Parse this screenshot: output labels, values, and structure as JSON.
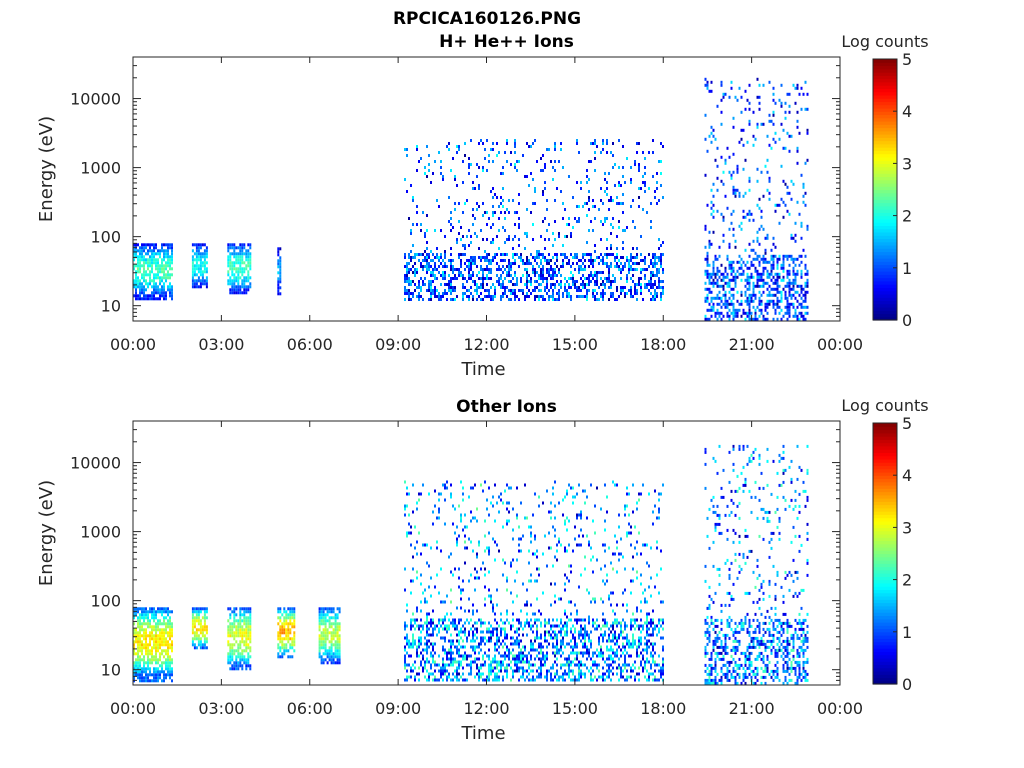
{
  "figure": {
    "title": "RPCICA160126.PNG"
  },
  "chart_data": [
    {
      "type": "heatmap",
      "title": "H+ He++ Ions",
      "xlabel": "Time",
      "ylabel": "Energy (eV)",
      "x_ticks": [
        "00:00",
        "03:00",
        "06:00",
        "09:00",
        "12:00",
        "15:00",
        "18:00",
        "21:00",
        "00:00"
      ],
      "y_ticks": [
        "10",
        "100",
        "1000",
        "10000"
      ],
      "y_scale": "log",
      "ylim": [
        6,
        40000
      ],
      "xlim_hours": [
        0,
        24
      ],
      "colorbar": {
        "label": "Log counts",
        "ticks": [
          "0",
          "1",
          "2",
          "3",
          "4",
          "5"
        ],
        "range": [
          0,
          5
        ],
        "colormap": "jet"
      },
      "data_intervals": [
        {
          "start_h": 0.0,
          "end_h": 1.3,
          "e_min": 12,
          "e_max": 80,
          "log_counts_peak": 2.2
        },
        {
          "start_h": 2.0,
          "end_h": 2.5,
          "e_min": 18,
          "e_max": 80,
          "log_counts_peak": 2.0
        },
        {
          "start_h": 3.2,
          "end_h": 4.0,
          "e_min": 15,
          "e_max": 80,
          "log_counts_peak": 2.2
        },
        {
          "start_h": 4.9,
          "end_h": 5.0,
          "e_min": 15,
          "e_max": 70,
          "log_counts_peak": 1.5
        },
        {
          "start_h": 9.2,
          "end_h": 18.0,
          "e_min": 12,
          "e_max": 2600,
          "log_counts_peak": 2.0
        },
        {
          "start_h": 19.4,
          "end_h": 22.9,
          "e_min": 6,
          "e_max": 20000,
          "log_counts_peak": 2.0
        }
      ]
    },
    {
      "type": "heatmap",
      "title": "Other Ions",
      "xlabel": "Time",
      "ylabel": "Energy (eV)",
      "x_ticks": [
        "00:00",
        "03:00",
        "06:00",
        "09:00",
        "12:00",
        "15:00",
        "18:00",
        "21:00",
        "00:00"
      ],
      "y_ticks": [
        "10",
        "100",
        "1000",
        "10000"
      ],
      "y_scale": "log",
      "ylim": [
        6,
        40000
      ],
      "xlim_hours": [
        0,
        24
      ],
      "colorbar": {
        "label": "Log counts",
        "ticks": [
          "0",
          "1",
          "2",
          "3",
          "4",
          "5"
        ],
        "range": [
          0,
          5
        ],
        "colormap": "jet"
      },
      "data_intervals": [
        {
          "start_h": 0.0,
          "end_h": 1.3,
          "e_min": 7,
          "e_max": 80,
          "log_counts_peak": 3.2
        },
        {
          "start_h": 2.0,
          "end_h": 2.5,
          "e_min": 20,
          "e_max": 80,
          "log_counts_peak": 3.2
        },
        {
          "start_h": 3.2,
          "end_h": 4.0,
          "e_min": 10,
          "e_max": 80,
          "log_counts_peak": 3.0
        },
        {
          "start_h": 4.9,
          "end_h": 5.5,
          "e_min": 15,
          "e_max": 80,
          "log_counts_peak": 3.5
        },
        {
          "start_h": 6.3,
          "end_h": 7.0,
          "e_min": 12,
          "e_max": 80,
          "log_counts_peak": 2.8
        },
        {
          "start_h": 9.2,
          "end_h": 18.0,
          "e_min": 7,
          "e_max": 5500,
          "log_counts_peak": 2.6
        },
        {
          "start_h": 19.4,
          "end_h": 22.9,
          "e_min": 6,
          "e_max": 18000,
          "log_counts_peak": 2.5
        }
      ]
    }
  ]
}
